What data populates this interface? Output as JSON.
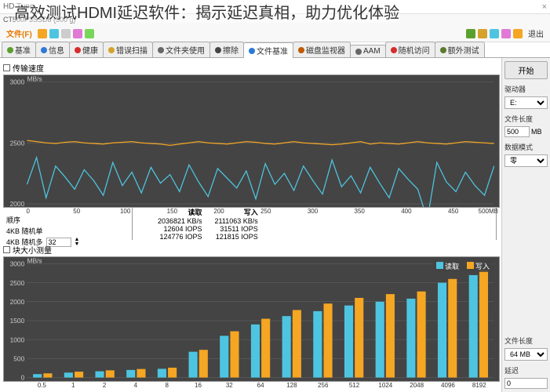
{
  "overlay_title": "高效测试HDMI延迟软件：揭示延迟真相，助力优化体验",
  "window_title": "HD Tune",
  "device_model": "CT500P3SSD8 (500 g)",
  "toolbar": {
    "file_menu": "文件(F)",
    "exit": "退出"
  },
  "tabs": [
    {
      "label": "基准",
      "icon_color": "#5aa02c"
    },
    {
      "label": "信息",
      "icon_color": "#2c7ad6"
    },
    {
      "label": "健康",
      "icon_color": "#d62c2c"
    },
    {
      "label": "错误扫描",
      "icon_color": "#d6a22c"
    },
    {
      "label": "文件夹使用",
      "icon_color": "#666"
    },
    {
      "label": "擦除",
      "icon_color": "#444"
    },
    {
      "label": "文件基准",
      "icon_color": "#2c7ad6"
    },
    {
      "label": "磁盘监视器",
      "icon_color": "#c05a00"
    },
    {
      "label": "AAM",
      "icon_color": "#666"
    },
    {
      "label": "随机访问",
      "icon_color": "#d62c2c"
    },
    {
      "label": "额外测试",
      "icon_color": "#5a7a2c"
    }
  ],
  "active_tab": 6,
  "chart1": {
    "title": "传输速度",
    "unit": "MB/s",
    "ylim": [
      2000,
      3000
    ],
    "yticks": [
      2000,
      2500,
      3000
    ],
    "xlim": [
      0,
      500
    ],
    "xticks": [
      0,
      50,
      100,
      150,
      200,
      250,
      300,
      350,
      400,
      450
    ],
    "xtick_suffix": "500MB",
    "background": "#444444",
    "grid_color": "#666666",
    "series": [
      {
        "name": "read",
        "color": "#f5a623",
        "data": [
          2520,
          2510,
          2500,
          2495,
          2505,
          2510,
          2500,
          2495,
          2490,
          2500,
          2505,
          2510,
          2500,
          2495,
          2490,
          2480,
          2490,
          2500,
          2510,
          2500,
          2495,
          2490,
          2500,
          2510,
          2505,
          2495,
          2490,
          2500,
          2510,
          2500,
          2495,
          2490,
          2485,
          2490,
          2500,
          2510,
          2490,
          2500,
          2495,
          2490,
          2500,
          2510,
          2500,
          2495,
          2490,
          2500,
          2510,
          2505,
          2500,
          2495
        ]
      },
      {
        "name": "write",
        "color": "#4ec5e0",
        "data": [
          2160,
          2380,
          2050,
          2310,
          2220,
          2120,
          2280,
          2190,
          2070,
          2340,
          2150,
          2260,
          2090,
          2300,
          2170,
          2240,
          2100,
          2320,
          2180,
          2060,
          2290,
          2210,
          2130,
          2270,
          2040,
          2330,
          2160,
          2250,
          2110,
          2310,
          2190,
          2080,
          2360,
          2140,
          2230,
          2090,
          2300,
          2170,
          2050,
          2290,
          2200,
          2120,
          1870,
          2340,
          2180,
          2100,
          2260,
          2150,
          2070,
          2310
        ]
      }
    ]
  },
  "stats": {
    "seq_label": "顺序",
    "rand4k_label": "4KB 随机单",
    "rand4k_multi_label": "4KB 随机多",
    "qd_value": "32",
    "cols": [
      "读取",
      "写入"
    ],
    "seq": [
      "2036821 KB/s",
      "2111063 KB/s"
    ],
    "rand4k": [
      "12604 IOPS",
      "31511 IOPS"
    ],
    "rand4k_multi": [
      "124776 IOPS",
      "121815 IOPS"
    ]
  },
  "chart2": {
    "title": "块大小测量",
    "unit": "MB/s",
    "ylim": [
      0,
      3000
    ],
    "yticks": [
      0,
      500,
      1000,
      1500,
      2000,
      2500,
      3000
    ],
    "categories": [
      "0.5",
      "1",
      "2",
      "4",
      "8",
      "16",
      "32",
      "64",
      "128",
      "256",
      "512",
      "1024",
      "2048",
      "4096",
      "8192"
    ],
    "background": "#444444",
    "grid_color": "#666666",
    "legend": [
      {
        "label": "读取",
        "color": "#4ec5e0"
      },
      {
        "label": "写入",
        "color": "#f5a623"
      }
    ],
    "read": [
      90,
      130,
      165,
      200,
      230,
      680,
      1100,
      1400,
      1620,
      1750,
      1900,
      2000,
      2080,
      2500,
      2700
    ],
    "write": [
      110,
      155,
      190,
      225,
      260,
      730,
      1220,
      1550,
      1780,
      1950,
      2100,
      2200,
      2270,
      2600,
      2820
    ]
  },
  "side": {
    "start_btn": "开始",
    "drive_label": "驱动器",
    "drive_value": "E:",
    "filelen_label": "文件长度",
    "filelen_value": "500",
    "filelen_unit": "MB",
    "pattern_label": "数据模式",
    "pattern_value": "零",
    "filelen2_label": "文件长度",
    "filelen2_value": "64 MB",
    "delay_label": "延迟",
    "delay_value": "0"
  }
}
